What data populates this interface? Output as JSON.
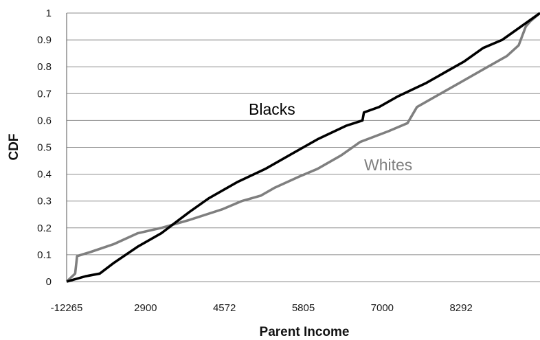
{
  "chart_data": {
    "type": "line",
    "title": "",
    "xlabel": "Parent Income",
    "ylabel": "CDF",
    "x_tick_labels": [
      "-12265",
      "2900",
      "4572",
      "5805",
      "7000",
      "8292"
    ],
    "x_scale": "categorical (income quantile positions)",
    "ylim": [
      0,
      1
    ],
    "y_ticks": [
      "0",
      "0.1",
      "0.2",
      "0.3",
      "0.4",
      "0.5",
      "0.6",
      "0.7",
      "0.8",
      "0.9",
      "1"
    ],
    "grid": "horizontal",
    "legend": "inline labels",
    "series": [
      {
        "name": "Blacks",
        "color": "#000000",
        "points": [
          [
            0.0,
            0.0
          ],
          [
            0.04,
            0.02
          ],
          [
            0.07,
            0.03
          ],
          [
            0.1,
            0.07
          ],
          [
            0.15,
            0.13
          ],
          [
            0.2,
            0.18
          ],
          [
            0.26,
            0.26
          ],
          [
            0.3,
            0.31
          ],
          [
            0.36,
            0.37
          ],
          [
            0.42,
            0.42
          ],
          [
            0.48,
            0.48
          ],
          [
            0.53,
            0.53
          ],
          [
            0.59,
            0.58
          ],
          [
            0.625,
            0.6
          ],
          [
            0.628,
            0.63
          ],
          [
            0.66,
            0.65
          ],
          [
            0.7,
            0.69
          ],
          [
            0.76,
            0.74
          ],
          [
            0.8,
            0.78
          ],
          [
            0.84,
            0.82
          ],
          [
            0.88,
            0.87
          ],
          [
            0.92,
            0.9
          ],
          [
            0.96,
            0.95
          ],
          [
            1.0,
            1.0
          ]
        ]
      },
      {
        "name": "Whites",
        "color": "#7f7f7f",
        "points": [
          [
            0.0,
            0.0
          ],
          [
            0.018,
            0.03
          ],
          [
            0.022,
            0.095
          ],
          [
            0.05,
            0.11
          ],
          [
            0.1,
            0.14
          ],
          [
            0.15,
            0.18
          ],
          [
            0.2,
            0.2
          ],
          [
            0.26,
            0.23
          ],
          [
            0.33,
            0.27
          ],
          [
            0.37,
            0.3
          ],
          [
            0.41,
            0.32
          ],
          [
            0.44,
            0.35
          ],
          [
            0.49,
            0.39
          ],
          [
            0.53,
            0.42
          ],
          [
            0.58,
            0.47
          ],
          [
            0.62,
            0.52
          ],
          [
            0.68,
            0.56
          ],
          [
            0.72,
            0.59
          ],
          [
            0.74,
            0.65
          ],
          [
            0.78,
            0.69
          ],
          [
            0.83,
            0.74
          ],
          [
            0.88,
            0.79
          ],
          [
            0.93,
            0.84
          ],
          [
            0.955,
            0.88
          ],
          [
            0.97,
            0.95
          ],
          [
            0.98,
            0.97
          ],
          [
            1.0,
            1.0
          ]
        ]
      }
    ]
  }
}
